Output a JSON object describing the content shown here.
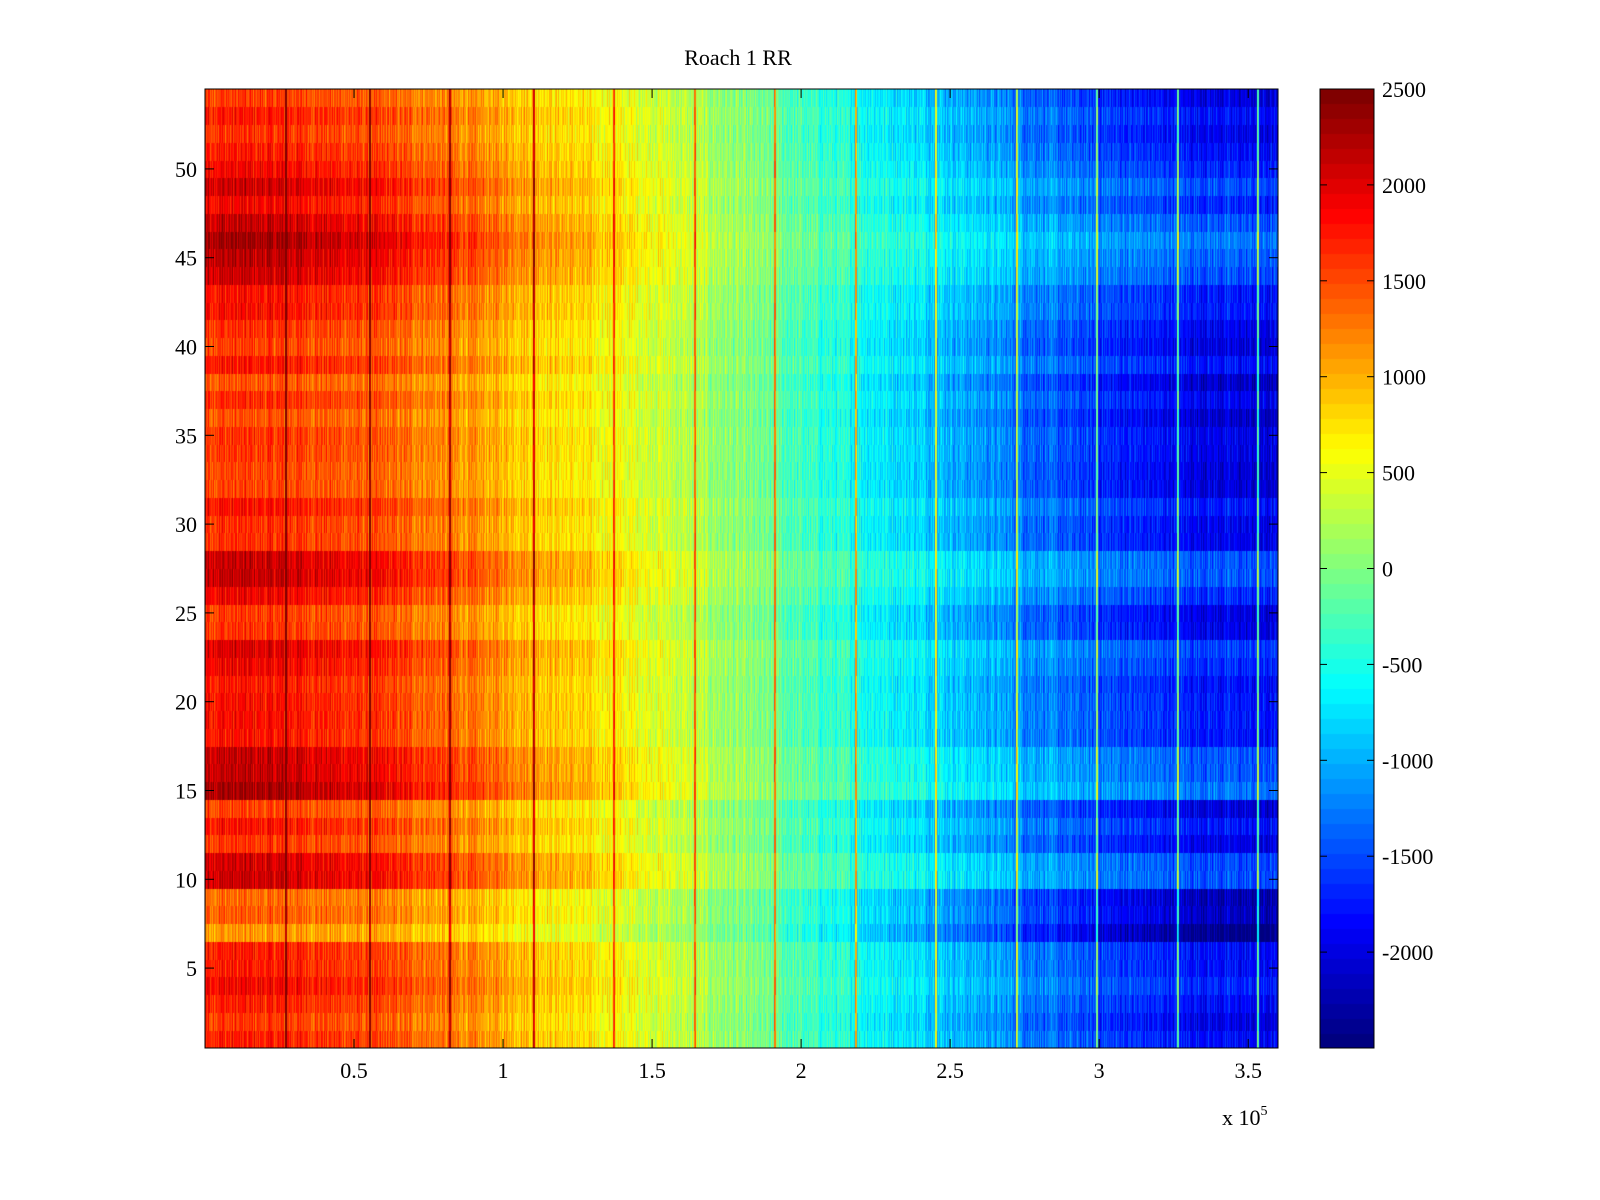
{
  "chart_data": {
    "type": "heatmap",
    "title": "Roach 1 RR",
    "xlabel": "",
    "ylabel": "",
    "x_exponent_label": {
      "base": "x 10",
      "exponent": "5"
    },
    "xlim": [
      0,
      360000
    ],
    "ylim": [
      0.5,
      54.5
    ],
    "x_ticks": [
      50000,
      100000,
      150000,
      200000,
      250000,
      300000,
      350000
    ],
    "x_tick_labels": [
      "0.5",
      "1",
      "1.5",
      "2",
      "2.5",
      "3",
      "3.5"
    ],
    "y_ticks": [
      5,
      10,
      15,
      20,
      25,
      30,
      35,
      40,
      45,
      50
    ],
    "y_tick_labels": [
      "5",
      "10",
      "15",
      "20",
      "25",
      "30",
      "35",
      "40",
      "45",
      "50"
    ],
    "rows": 54,
    "value_trend_by_x": {
      "x": [
        0,
        30000,
        60000,
        90000,
        120000,
        150000,
        180000,
        210000,
        240000,
        270000,
        300000,
        330000,
        360000
      ],
      "mean_value": [
        1700,
        1650,
        1450,
        1150,
        800,
        450,
        0,
        -450,
        -800,
        -1200,
        -1600,
        -1850,
        -2000
      ]
    },
    "row_offsets": [
      {
        "rows": [
          15,
          16,
          17
        ],
        "offset": 700
      },
      {
        "rows": [
          44,
          45,
          46
        ],
        "offset": 600
      },
      {
        "rows": [
          47,
          48,
          49,
          50
        ],
        "offset": 450
      },
      {
        "rows": [
          10,
          11
        ],
        "offset": 350
      },
      {
        "rows": [
          21,
          22,
          23
        ],
        "offset": 300
      },
      {
        "rows": [
          26,
          27,
          28
        ],
        "offset": 350
      },
      {
        "rows": [
          7,
          8,
          9
        ],
        "offset": -500
      },
      {
        "rows": [
          36,
          37,
          38
        ],
        "offset": -250
      }
    ],
    "vertical_stripes_x": [
      27000,
      55000,
      82000,
      110000,
      137000,
      164000,
      191000,
      218000,
      245000,
      272000,
      299000,
      326000,
      353000
    ],
    "colorbar": {
      "colormap": "jet",
      "clim": [
        -2500,
        2500
      ],
      "ticks": [
        2500,
        2000,
        1500,
        1000,
        500,
        0,
        -500,
        -1000,
        -1500,
        -2000
      ],
      "tick_labels": [
        "2500",
        "2000",
        "1500",
        "1000",
        "500",
        "0",
        "-500",
        "-1000",
        "-1500",
        "-2000"
      ]
    }
  }
}
